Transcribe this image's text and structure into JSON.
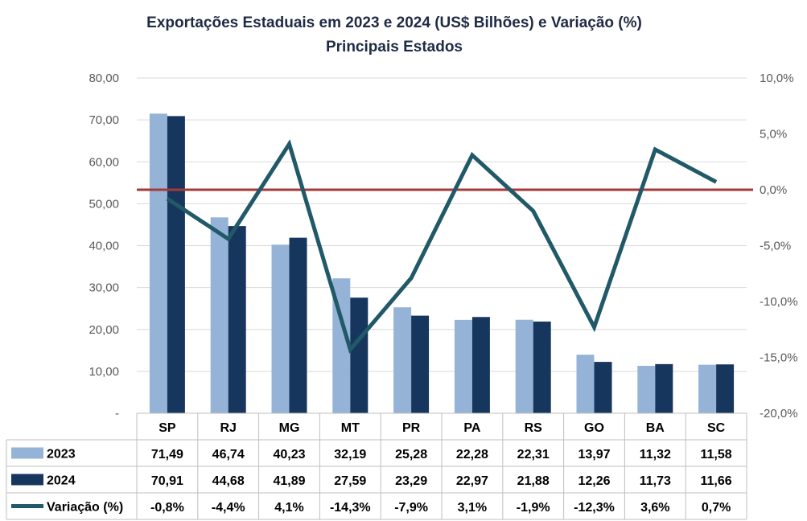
{
  "chart_data": {
    "type": "bar",
    "title": "Exportações Estaduais em 2023 e 2024 (US$ Bilhões) e Variação (%)",
    "subtitle": "Principais Estados",
    "categories": [
      "SP",
      "RJ",
      "MG",
      "MT",
      "PR",
      "PA",
      "RS",
      "GO",
      "BA",
      "SC"
    ],
    "series": [
      {
        "name": "2023",
        "type": "bar",
        "axis": "left",
        "color": "#95b3d7",
        "values": [
          71.49,
          46.74,
          40.23,
          32.19,
          25.28,
          22.28,
          22.31,
          13.97,
          11.32,
          11.58
        ],
        "labels": [
          "71,49",
          "46,74",
          "40,23",
          "32,19",
          "25,28",
          "22,28",
          "22,31",
          "13,97",
          "11,32",
          "11,58"
        ]
      },
      {
        "name": "2024",
        "type": "bar",
        "axis": "left",
        "color": "#17365d",
        "values": [
          70.91,
          44.68,
          41.89,
          27.59,
          23.29,
          22.97,
          21.88,
          12.26,
          11.73,
          11.66
        ],
        "labels": [
          "70,91",
          "44,68",
          "41,89",
          "27,59",
          "23,29",
          "22,97",
          "21,88",
          "12,26",
          "11,73",
          "11,66"
        ]
      },
      {
        "name": "Variação (%)",
        "type": "line",
        "axis": "right",
        "color": "#215968",
        "values": [
          -0.8,
          -4.4,
          4.1,
          -14.3,
          -7.9,
          3.1,
          -1.9,
          -12.3,
          3.6,
          0.7
        ],
        "labels": [
          "-0,8%",
          "-4,4%",
          "4,1%",
          "-14,3%",
          "-7,9%",
          "3,1%",
          "-1,9%",
          "-12,3%",
          "3,6%",
          "0,7%"
        ]
      }
    ],
    "y_left": {
      "min": 0,
      "max": 80,
      "ticks": [
        "-",
        "10,00",
        "20,00",
        "30,00",
        "40,00",
        "50,00",
        "60,00",
        "70,00",
        "80,00"
      ]
    },
    "y_right": {
      "min": -20,
      "max": 10,
      "ticks": [
        "-20,0%",
        "-15,0%",
        "-10,0%",
        "-5,0%",
        "0,0%",
        "5,0%",
        "10,0%"
      ]
    },
    "zero_line_color": "#a33a3a",
    "grid": true,
    "legend": "data-table"
  }
}
